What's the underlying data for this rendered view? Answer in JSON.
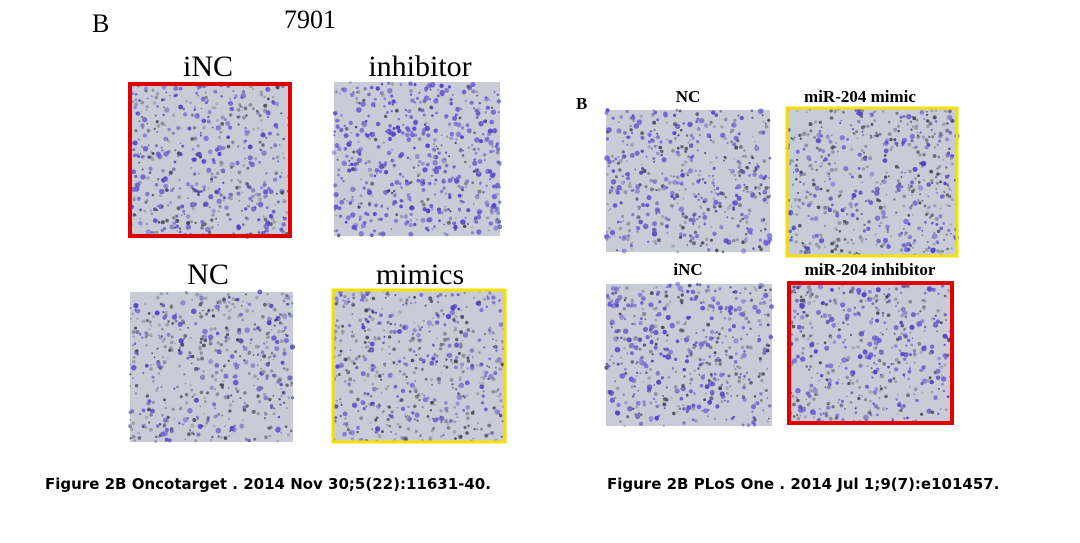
{
  "left": {
    "letter": "B",
    "title": "7901",
    "panels": [
      {
        "label": "iNC"
      },
      {
        "label": "inhibitor"
      },
      {
        "label": "NC"
      },
      {
        "label": "mimics"
      }
    ],
    "caption": "Figure 2B Oncotarget . 2014 Nov 30;5(22):11631-40."
  },
  "right": {
    "letter": "B",
    "panels": [
      {
        "label": "NC"
      },
      {
        "label": "miR-204 mimic"
      },
      {
        "label": "iNC"
      },
      {
        "label": "miR-204 inhibitor"
      }
    ],
    "caption": "Figure 2B PLoS One . 2014 Jul 1;9(7):e101457."
  }
}
